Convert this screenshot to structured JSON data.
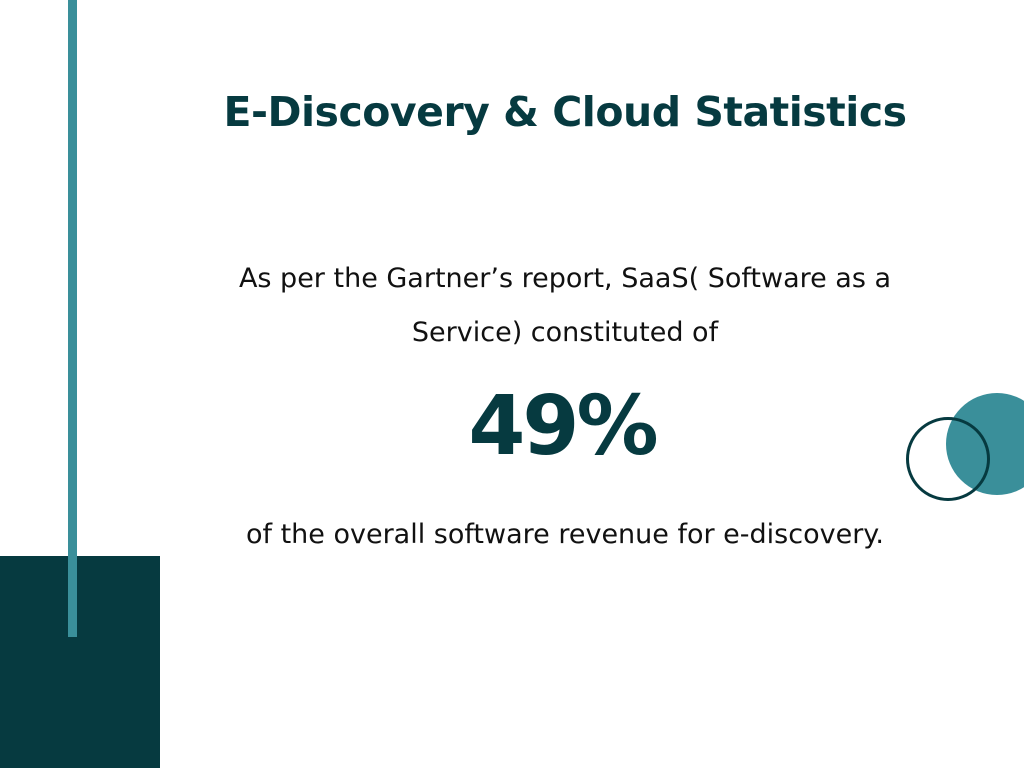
{
  "slide": {
    "title": "E-Discovery & Cloud Statistics",
    "intro_line1": "As per the Gartner’s report, SaaS( Software as a",
    "intro_line2": "Service) constituted of",
    "stat_value": "49%",
    "outro": "of the overall software revenue for e-discovery."
  },
  "colors": {
    "dark_teal": "#063a40",
    "accent_teal": "#3a8f9a",
    "background": "#ffffff",
    "body_text": "#111111"
  }
}
